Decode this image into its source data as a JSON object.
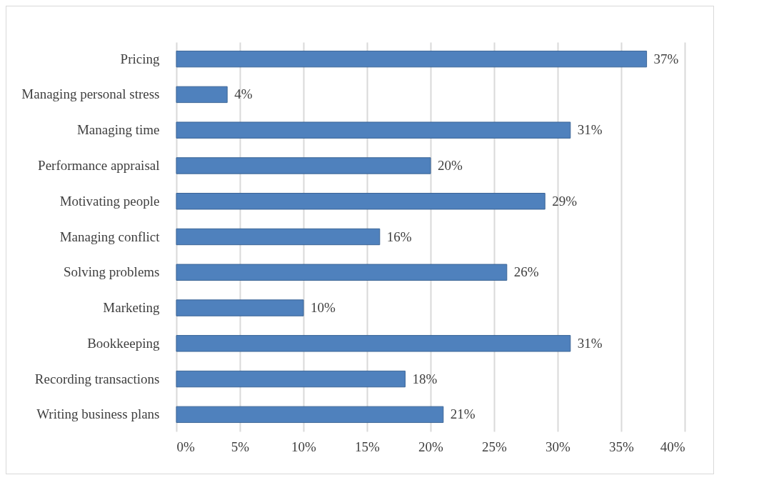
{
  "chart_data": {
    "type": "bar",
    "orientation": "horizontal",
    "categories": [
      "Pricing",
      "Managing personal stress",
      "Managing time",
      "Performance appraisal",
      "Motivating people",
      "Managing conflict",
      "Solving problems",
      "Marketing",
      "Bookkeeping",
      "Recording transactions",
      "Writing business plans"
    ],
    "values": [
      37,
      4,
      31,
      20,
      29,
      16,
      26,
      10,
      31,
      18,
      21
    ],
    "value_labels": [
      "37%",
      "4%",
      "31%",
      "20%",
      "29%",
      "16%",
      "26%",
      "10%",
      "31%",
      "18%",
      "21%"
    ],
    "color": "#4f81bd",
    "xlim": [
      0,
      40
    ],
    "xticks": [
      {
        "value": 0,
        "label": "0%"
      },
      {
        "value": 5,
        "label": "5%"
      },
      {
        "value": 10,
        "label": "10%"
      },
      {
        "value": 15,
        "label": "15%"
      },
      {
        "value": 20,
        "label": "20%"
      },
      {
        "value": 25,
        "label": "25%"
      },
      {
        "value": 30,
        "label": "30%"
      },
      {
        "value": 35,
        "label": "35%"
      },
      {
        "value": 40,
        "label": "40%"
      }
    ],
    "grid": "x"
  }
}
